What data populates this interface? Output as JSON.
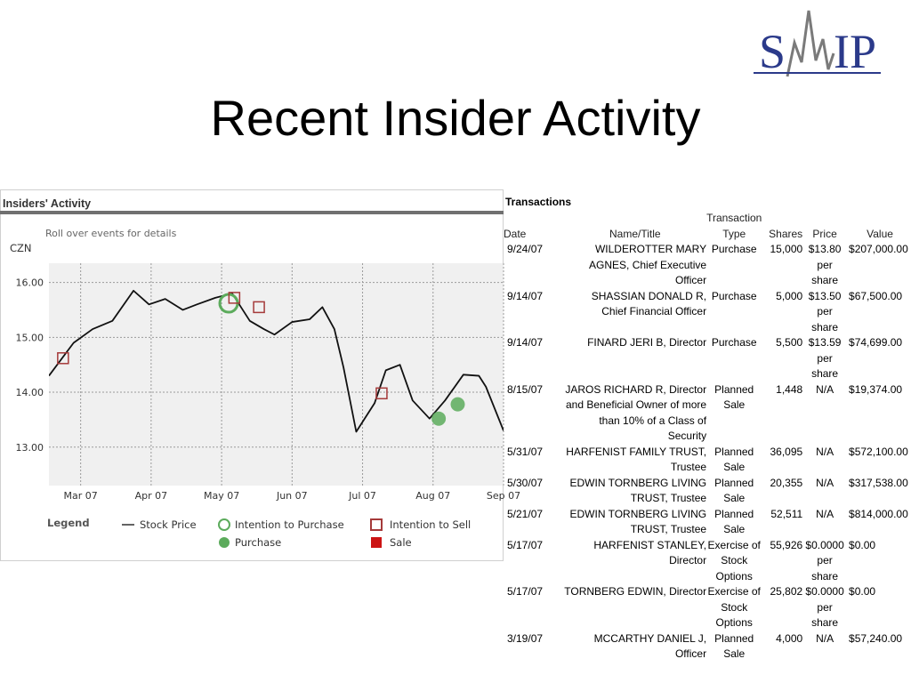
{
  "slide": {
    "title": "Recent Insider Activity",
    "logo_text": {
      "left": "S",
      "right": "IP"
    }
  },
  "chart_panel": {
    "header": "Insiders' Activity",
    "hint": "Roll over events for details",
    "ticker": "CZN",
    "legend": {
      "title": "Legend",
      "items": {
        "stock_price": "Stock Price",
        "intent_purchase": "Intention to Purchase",
        "intent_sell": "Intention to Sell",
        "purchase": "Purchase",
        "sale": "Sale"
      }
    }
  },
  "chart_data": {
    "type": "line",
    "title": "Insiders' Activity",
    "series": [
      {
        "name": "Stock Price",
        "x": [
          0,
          0.35,
          0.62,
          0.9,
          1.2,
          1.42,
          1.65,
          1.9,
          2.1,
          2.36,
          2.6,
          2.85,
          3.05,
          3.2,
          3.45,
          3.7,
          3.88,
          4.05,
          4.18,
          4.36,
          4.62,
          4.78,
          4.98,
          5.16,
          5.4,
          5.62,
          5.88,
          6.1,
          6.2,
          6.45
        ],
        "y": [
          14.3,
          14.9,
          15.15,
          15.3,
          15.85,
          15.6,
          15.7,
          15.5,
          15.6,
          15.72,
          15.8,
          15.3,
          15.15,
          15.05,
          15.28,
          15.33,
          15.55,
          15.15,
          14.45,
          13.28,
          13.8,
          14.4,
          14.5,
          13.85,
          13.52,
          13.85,
          14.32,
          14.3,
          14.1,
          13.3
        ]
      }
    ],
    "events": [
      {
        "type": "Intention to Sell",
        "x": 0.2,
        "y": 14.62
      },
      {
        "type": "Intention to Purchase",
        "x": 2.55,
        "y": 15.62
      },
      {
        "type": "Intention to Sell",
        "x": 2.63,
        "y": 15.72
      },
      {
        "type": "Intention to Sell",
        "x": 2.98,
        "y": 15.55
      },
      {
        "type": "Intention to Sell",
        "x": 4.72,
        "y": 13.98
      },
      {
        "type": "Purchase",
        "x": 5.53,
        "y": 13.52
      },
      {
        "type": "Purchase",
        "x": 5.8,
        "y": 13.78
      }
    ],
    "x_ticks": [
      "Mar 07",
      "Apr 07",
      "May 07",
      "Jun 07",
      "Jul 07",
      "Aug 07",
      "Sep 07"
    ],
    "y_ticks": [
      "16.00",
      "15.00",
      "14.00",
      "13.00"
    ],
    "y_tick_values": [
      16,
      15,
      14,
      13
    ],
    "xlim": [
      0,
      6.45
    ],
    "ylim": [
      12.3,
      16.35
    ],
    "grid": true,
    "colors": {
      "line": "#111111",
      "intent": "#a53a3a",
      "purchase": "#5cab5c",
      "plot_bg": "#f0f0f0",
      "header_bar": "#707070"
    }
  },
  "transactions": {
    "title": "Transactions",
    "columns": {
      "date": "Date",
      "name": "Name/Title",
      "type": "Transaction Type",
      "shares": "Shares",
      "price": "Price",
      "value": "Value"
    },
    "rows": [
      {
        "date": "9/24/07",
        "name": "WILDEROTTER MARY AGNES, Chief Executive Officer",
        "type": "Purchase",
        "shares": "15,000",
        "price": "$13.80 per share",
        "value": "$207,000.00"
      },
      {
        "date": "9/14/07",
        "name": "SHASSIAN DONALD R, Chief Financial Officer",
        "type": "Purchase",
        "shares": "5,000",
        "price": "$13.50 per share",
        "value": "$67,500.00"
      },
      {
        "date": "9/14/07",
        "name": "FINARD JERI B, Director",
        "type": "Purchase",
        "shares": "5,500",
        "price": "$13.59 per share",
        "value": "$74,699.00"
      },
      {
        "date": "8/15/07",
        "name": "JAROS RICHARD R, Director and Beneficial Owner of more than 10% of a Class of Security",
        "type": "Planned Sale",
        "shares": "1,448",
        "price": "N/A",
        "value": "$19,374.00"
      },
      {
        "date": "5/31/07",
        "name": "HARFENIST FAMILY TRUST, Trustee",
        "type": "Planned Sale",
        "shares": "36,095",
        "price": "N/A",
        "value": "$572,100.00"
      },
      {
        "date": "5/30/07",
        "name": "EDWIN TORNBERG LIVING TRUST, Trustee",
        "type": "Planned Sale",
        "shares": "20,355",
        "price": "N/A",
        "value": "$317,538.00"
      },
      {
        "date": "5/21/07",
        "name": "EDWIN TORNBERG LIVING TRUST, Trustee",
        "type": "Planned Sale",
        "shares": "52,511",
        "price": "N/A",
        "value": "$814,000.00"
      },
      {
        "date": "5/17/07",
        "name": "HARFENIST STANLEY, Director",
        "type": "Exercise of Stock Options",
        "shares": "55,926",
        "price": "$0.0000 per share",
        "value": "$0.00"
      },
      {
        "date": "5/17/07",
        "name": "TORNBERG EDWIN, Director",
        "type": "Exercise of Stock Options",
        "shares": "25,802",
        "price": "$0.0000 per share",
        "value": "$0.00"
      },
      {
        "date": "3/19/07",
        "name": "MCCARTHY DANIEL J, Officer",
        "type": "Planned Sale",
        "shares": "4,000",
        "price": "N/A",
        "value": "$57,240.00"
      }
    ]
  }
}
